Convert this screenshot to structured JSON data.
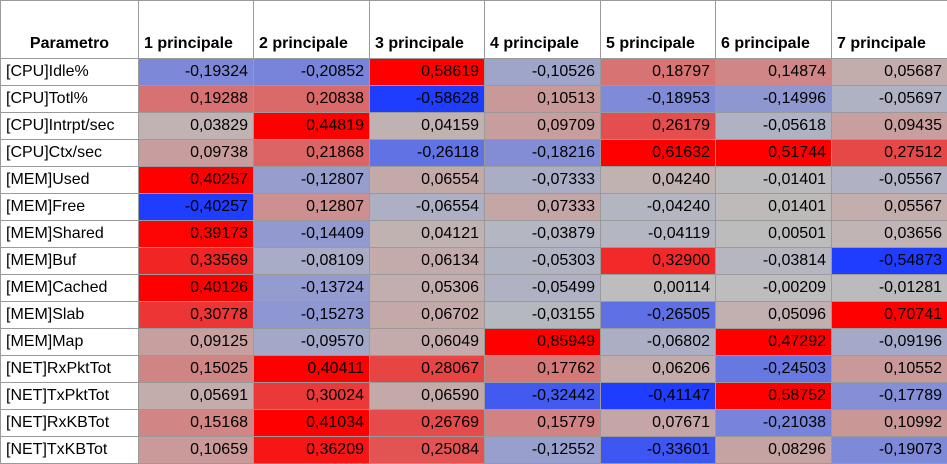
{
  "table": {
    "header": {
      "param_label": "Parametro",
      "columns": [
        "1 principale",
        "2 principale",
        "3 principale",
        "4 principale",
        "5 principale",
        "6 principale",
        "7 principale"
      ]
    },
    "rows": [
      {
        "param": "[CPU]Idle%",
        "values": [
          "-0,19324",
          "-0,20852",
          "0,58619",
          "-0,10526",
          "0,18797",
          "0,14874",
          "0,05687"
        ]
      },
      {
        "param": "[CPU]Totl%",
        "values": [
          "0,19288",
          "0,20838",
          "-0,58628",
          "0,10513",
          "-0,18953",
          "-0,14996",
          "-0,05697"
        ]
      },
      {
        "param": "[CPU]Intrpt/sec",
        "values": [
          "0,03829",
          "0,44819",
          "0,04159",
          "0,09709",
          "0,26179",
          "-0,05618",
          "0,09435"
        ]
      },
      {
        "param": "[CPU]Ctx/sec",
        "values": [
          "0,09738",
          "0,21868",
          "-0,26118",
          "-0,18216",
          "0,61632",
          "0,51744",
          "0,27512"
        ]
      },
      {
        "param": "[MEM]Used",
        "values": [
          "0,40257",
          "-0,12807",
          "0,06554",
          "-0,07333",
          "0,04240",
          "-0,01401",
          "-0,05567"
        ]
      },
      {
        "param": "[MEM]Free",
        "values": [
          "-0,40257",
          "0,12807",
          "-0,06554",
          "0,07333",
          "-0,04240",
          "0,01401",
          "0,05567"
        ]
      },
      {
        "param": "[MEM]Shared",
        "values": [
          "0,39173",
          "-0,14409",
          "0,04121",
          "-0,03879",
          "-0,04119",
          "0,00501",
          "0,03656"
        ]
      },
      {
        "param": "[MEM]Buf",
        "values": [
          "0,33569",
          "-0,08109",
          "0,06134",
          "-0,05303",
          "0,32900",
          "-0,03814",
          "-0,54873"
        ]
      },
      {
        "param": "[MEM]Cached",
        "values": [
          "0,40126",
          "-0,13724",
          "0,05306",
          "-0,05499",
          "0,00114",
          "-0,00209",
          "-0,01281"
        ]
      },
      {
        "param": "[MEM]Slab",
        "values": [
          "0,30778",
          "-0,15273",
          "0,06702",
          "-0,03155",
          "-0,26505",
          "0,05096",
          "0,70741"
        ]
      },
      {
        "param": "[MEM]Map",
        "values": [
          "0,09125",
          "-0,09570",
          "0,06049",
          "0,85949",
          "-0,06802",
          "0,47292",
          "-0,09196"
        ]
      },
      {
        "param": "[NET]RxPktTot",
        "values": [
          "0,15025",
          "0,40411",
          "0,28067",
          "0,17762",
          "0,06206",
          "-0,24503",
          "0,10552"
        ]
      },
      {
        "param": "[NET]TxPktTot",
        "values": [
          "0,05691",
          "0,30024",
          "0,06590",
          "-0,32442",
          "-0,41147",
          "0,58752",
          "-0,17789"
        ]
      },
      {
        "param": "[NET]RxKBTot",
        "values": [
          "0,15168",
          "0,41034",
          "0,26769",
          "0,15779",
          "0,07671",
          "-0,21038",
          "0,10992"
        ]
      },
      {
        "param": "[NET]TxKBTot",
        "values": [
          "0,10659",
          "0,36209",
          "0,25084",
          "-0,12552",
          "-0,33601",
          "0,08296",
          "-0,19073"
        ]
      }
    ]
  },
  "colors": {
    "positive": "#ff0000",
    "negative": "#1f3dff",
    "neutral": "#bdbdbd",
    "grid": "#9a9a9a"
  }
}
